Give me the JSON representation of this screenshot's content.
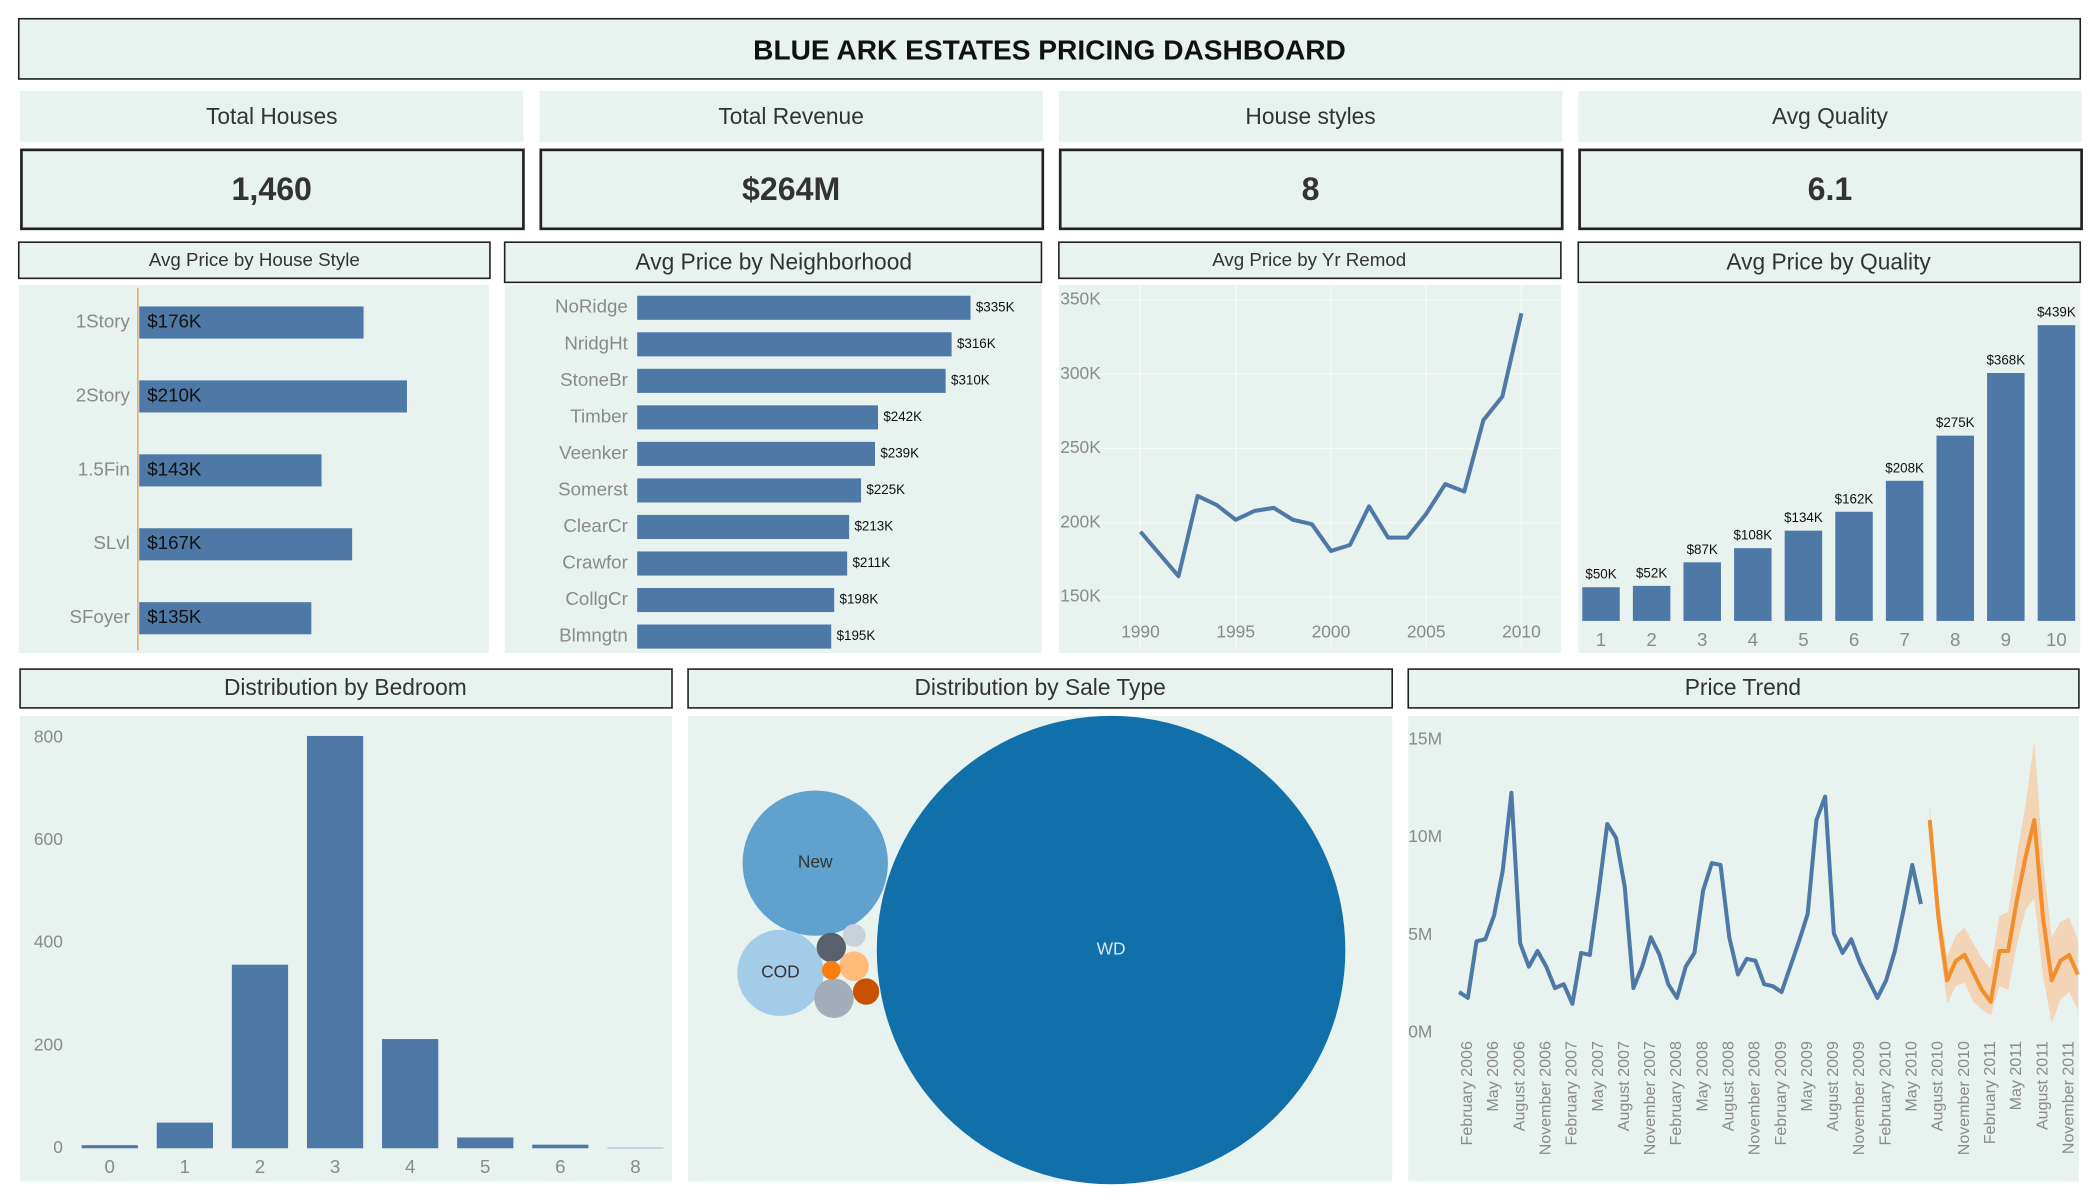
{
  "title": "BLUE ARK ESTATES PRICING DASHBOARD",
  "kpis": [
    {
      "label": "Total Houses",
      "value": "1,460"
    },
    {
      "label": "Total Revenue",
      "value": "$264M"
    },
    {
      "label": "House styles",
      "value": "8"
    },
    {
      "label": "Avg Quality",
      "value": "6.1"
    }
  ],
  "chart_data": [
    {
      "type": "hbar",
      "title": "Avg Price by House Style",
      "categories": [
        "1Story",
        "2Story",
        "1.5Fin",
        "SLvl",
        "SFoyer"
      ],
      "values": [
        176000,
        210000,
        143000,
        167000,
        135000
      ],
      "value_labels": [
        "$176K",
        "$210K",
        "$143K",
        "$167K",
        "$135K"
      ],
      "color": "#4e79a7"
    },
    {
      "type": "hbar",
      "title": "Avg Price by Neighborhood",
      "categories": [
        "NoRidge",
        "NridgHt",
        "StoneBr",
        "Timber",
        "Veenker",
        "Somerst",
        "ClearCr",
        "Crawfor",
        "CollgCr",
        "Blmngtn"
      ],
      "values": [
        335000,
        316000,
        310000,
        242000,
        239000,
        225000,
        213000,
        211000,
        198000,
        195000
      ],
      "value_labels": [
        "$335K",
        "$316K",
        "$310K",
        "$242K",
        "$239K",
        "$225K",
        "$213K",
        "$211K",
        "$198K",
        "$195K"
      ],
      "color": "#4e79a7"
    },
    {
      "type": "line",
      "title": "Avg Price by Yr Remod",
      "x": [
        1990,
        1991,
        1992,
        1993,
        1994,
        1995,
        1996,
        1997,
        1998,
        1999,
        2000,
        2001,
        2002,
        2003,
        2004,
        2005,
        2006,
        2007,
        2008,
        2009,
        2010
      ],
      "values": [
        194000,
        179000,
        164000,
        218000,
        212000,
        202000,
        208000,
        210000,
        202000,
        199000,
        181000,
        185000,
        211000,
        190000,
        190000,
        206000,
        226000,
        221000,
        269000,
        285000,
        341000
      ],
      "xlim": [
        1986,
        2012
      ],
      "ylim": [
        115000,
        360000
      ],
      "xticks": [
        1990,
        1995,
        2000,
        2005,
        2010
      ],
      "yticks": [
        {
          "value": 150000,
          "label": "150K"
        },
        {
          "value": 200000,
          "label": "200K"
        },
        {
          "value": 250000,
          "label": "250K"
        },
        {
          "value": 300000,
          "label": "300K"
        },
        {
          "value": 350000,
          "label": "350K"
        }
      ],
      "color": "#4e79a7",
      "grid": true
    },
    {
      "type": "bar",
      "title": "Avg Price by Quality",
      "categories": [
        "1",
        "2",
        "3",
        "4",
        "5",
        "6",
        "7",
        "8",
        "9",
        "10"
      ],
      "values": [
        50000,
        52000,
        87000,
        108000,
        134000,
        162000,
        208000,
        275000,
        368000,
        439000
      ],
      "value_labels": [
        "$50K",
        "$52K",
        "$87K",
        "$108K",
        "$134K",
        "$162K",
        "$208K",
        "$275K",
        "$368K",
        "$439K"
      ],
      "color": "#4e79a7"
    },
    {
      "type": "bar",
      "title": "Distribution by Bedroom",
      "categories": [
        "0",
        "1",
        "2",
        "3",
        "4",
        "5",
        "6",
        "8"
      ],
      "values": [
        6,
        50,
        358,
        804,
        213,
        21,
        7,
        1
      ],
      "ylim": [
        -5,
        830
      ],
      "yticks": [
        0,
        200,
        400,
        600,
        800
      ],
      "color": "#4e79a7"
    },
    {
      "type": "bubble",
      "title": "Distribution by Sale Type",
      "categories": [
        "WD",
        "New",
        "COD",
        null,
        null,
        null,
        null,
        null,
        null
      ],
      "values": [
        1267,
        122,
        43,
        9,
        5,
        5,
        4,
        3,
        2
      ],
      "colors": [
        "#1170aa",
        "#5fa2ce",
        "#a3cce9",
        "#a3acb9",
        "#57606c",
        "#ffbc79",
        "#c85200",
        "#c8d0d9",
        "#fc7d0b"
      ]
    },
    {
      "type": "line",
      "title": "Price Trend",
      "categories": [
        null,
        "February 2006",
        null,
        null,
        "May 2006",
        null,
        null,
        "August 2006",
        null,
        null,
        "November 2006",
        null,
        null,
        "February 2007",
        null,
        null,
        "May 2007",
        null,
        null,
        "August 2007",
        null,
        null,
        "November 2007",
        null,
        null,
        "February 2008",
        null,
        null,
        "May 2008",
        null,
        null,
        "August 2008",
        null,
        null,
        "November 2008",
        null,
        null,
        "February 2009",
        null,
        null,
        "May 2009",
        null,
        null,
        "August 2009",
        null,
        null,
        "November 2009",
        null,
        null,
        "February 2010",
        null,
        null,
        "May 2010",
        null,
        null,
        "August 2010",
        null,
        null,
        "November 2010",
        null,
        null,
        "February 2011",
        null,
        null,
        "May 2011",
        null,
        null,
        "August 2011",
        null,
        null,
        "November 2011",
        null
      ],
      "series": [
        {
          "color": "#4e79a7",
          "values": [
            2100000.0,
            1800000.0,
            4700000.0,
            4800000.0,
            6000000.0,
            8300000.0,
            12300000.0,
            4600000.0,
            3400000.0,
            4200000.0,
            3400000.0,
            2300000.0,
            2500000.0,
            1500000.0,
            4100000.0,
            4000000.0,
            7200000.0,
            10700000.0,
            10000000.0,
            7500000.0,
            2300000.0,
            3400000.0,
            4900000.0,
            4000000.0,
            2500000.0,
            1800000.0,
            3400000.0,
            4100000.0,
            7300000.0,
            8700000.0,
            8600000.0,
            4900000.0,
            3000000.0,
            3800000.0,
            3700000.0,
            2500000.0,
            2400000.0,
            2100000.0,
            3400000.0,
            4700000.0,
            6100000.0,
            10900000.0,
            12100000.0,
            5100000.0,
            4100000.0,
            4800000.0,
            3600000.0,
            2700000.0,
            1800000.0,
            2700000.0,
            4200000.0,
            6300000.0,
            8600000.0,
            6600000.0,
            null,
            null,
            null,
            null,
            null,
            null,
            null,
            null,
            null,
            null,
            null,
            null,
            null,
            null,
            null,
            null,
            null,
            null
          ]
        },
        {
          "color": "#f28e2b",
          "values": [
            null,
            null,
            null,
            null,
            null,
            null,
            null,
            null,
            null,
            null,
            null,
            null,
            null,
            null,
            null,
            null,
            null,
            null,
            null,
            null,
            null,
            null,
            null,
            null,
            null,
            null,
            null,
            null,
            null,
            null,
            null,
            null,
            null,
            null,
            null,
            null,
            null,
            null,
            null,
            null,
            null,
            null,
            null,
            null,
            null,
            null,
            null,
            null,
            null,
            null,
            null,
            null,
            null,
            null,
            10900000.0,
            5900000.0,
            2700000.0,
            3700000.0,
            4000000.0,
            3100000.0,
            2200000.0,
            1600000.0,
            4200000.0,
            4200000.0,
            6800000.0,
            9000000.0,
            10900000.0,
            5900000.0,
            2700000.0,
            3700000.0,
            4000000.0,
            3000000.0
          ],
          "band": {
            "color": "#f5cba3",
            "upper": [
              null,
              null,
              null,
              null,
              null,
              null,
              null,
              null,
              null,
              null,
              null,
              null,
              null,
              null,
              null,
              null,
              null,
              null,
              null,
              null,
              null,
              null,
              null,
              null,
              null,
              null,
              null,
              null,
              null,
              null,
              null,
              null,
              null,
              null,
              null,
              null,
              null,
              null,
              null,
              null,
              null,
              null,
              null,
              null,
              null,
              null,
              null,
              null,
              null,
              null,
              null,
              null,
              null,
              null,
              11700000.0,
              6900000.0,
              3900000.0,
              5000000.0,
              5400000.0,
              4600000.0,
              3800000.0,
              3300000.0,
              6000000.0,
              6200000.0,
              9100000.0,
              11700000.0,
              14900000.0,
              8900000.0,
              4900000.0,
              5700000.0,
              5900000.0,
              4800000.0
            ],
            "lower": [
              null,
              null,
              null,
              null,
              null,
              null,
              null,
              null,
              null,
              null,
              null,
              null,
              null,
              null,
              null,
              null,
              null,
              null,
              null,
              null,
              null,
              null,
              null,
              null,
              null,
              null,
              null,
              null,
              null,
              null,
              null,
              null,
              null,
              null,
              null,
              null,
              null,
              null,
              null,
              null,
              null,
              null,
              null,
              null,
              null,
              null,
              null,
              null,
              null,
              null,
              null,
              null,
              null,
              null,
              10100000.0,
              4900000.0,
              1500000.0,
              2400000.0,
              2600000.0,
              1600000.0,
              1200000.0,
              900000.0,
              2400000.0,
              2200000.0,
              4500000.0,
              6300000.0,
              6900000.0,
              2900000.0,
              500000.0,
              1700000.0,
              2100000.0,
              1200000.0
            ]
          }
        }
      ],
      "ylim": [
        -500000,
        15600000
      ],
      "yticks": [
        {
          "value": 0,
          "label": "0M"
        },
        {
          "value": 5000000,
          "label": "5M"
        },
        {
          "value": 10000000,
          "label": "10M"
        },
        {
          "value": 15000000,
          "label": "15M"
        }
      ]
    }
  ]
}
